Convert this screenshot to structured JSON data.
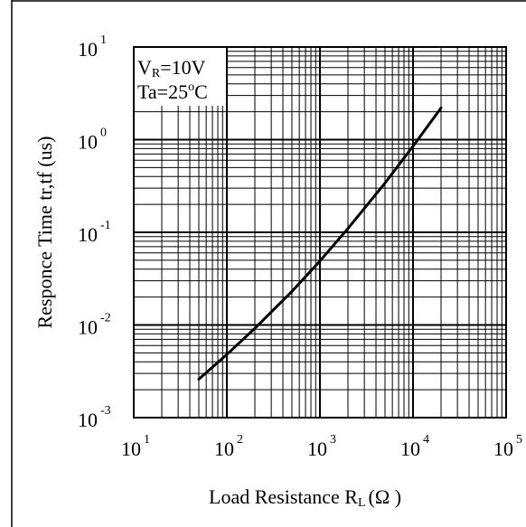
{
  "chart_data": {
    "type": "line",
    "xlabel": "Load Resistance R",
    "xlabel_subscript": "L",
    "xlabel_unit": "(Ω )",
    "ylabel": "Responce Time tr,tf (us)",
    "x_scale": "log",
    "y_scale": "log",
    "xlim": [
      10,
      100000
    ],
    "ylim": [
      0.001,
      10
    ],
    "x_ticks": [
      {
        "base": "10",
        "exp": "1",
        "value": 10
      },
      {
        "base": "10",
        "exp": "2",
        "value": 100
      },
      {
        "base": "10",
        "exp": "3",
        "value": 1000
      },
      {
        "base": "10",
        "exp": "4",
        "value": 10000
      },
      {
        "base": "10",
        "exp": "5",
        "value": 100000
      }
    ],
    "y_ticks": [
      {
        "base": "10",
        "exp": "-3",
        "value": 0.001
      },
      {
        "base": "10",
        "exp": "-2",
        "value": 0.01
      },
      {
        "base": "10",
        "exp": "-1",
        "value": 0.1
      },
      {
        "base": "10",
        "exp": "0",
        "value": 1
      },
      {
        "base": "10",
        "exp": "1",
        "value": 10
      }
    ],
    "grid": true,
    "conditions": {
      "line1_main": "V",
      "line1_sub": "R",
      "line1_rest": "=10V",
      "line2_main": "Ta=25",
      "line2_sup": "o",
      "line2_rest": "C"
    },
    "series": [
      {
        "x": [
          50,
          100,
          200,
          500,
          1000,
          2000,
          5000,
          10000,
          20000
        ],
        "y": [
          0.0026,
          0.0048,
          0.0092,
          0.023,
          0.049,
          0.11,
          0.34,
          0.85,
          2.2
        ]
      }
    ]
  }
}
